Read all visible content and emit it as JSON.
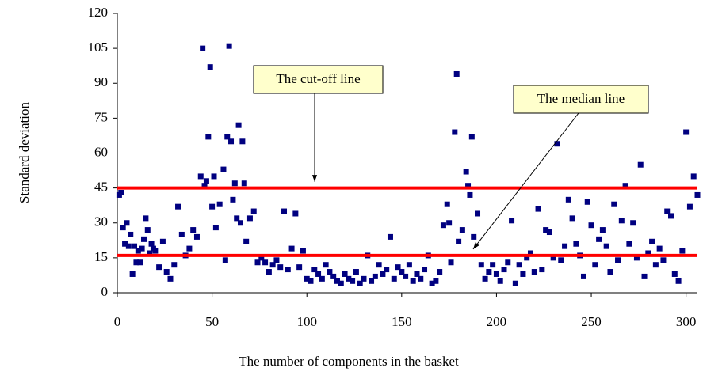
{
  "chart_data": {
    "type": "scatter",
    "x_label": "The number of components in the basket",
    "y_label": "Standard deviation",
    "xlim": [
      0,
      306
    ],
    "xticks": [
      0,
      50,
      100,
      150,
      200,
      250,
      300
    ],
    "ylim": [
      0,
      120
    ],
    "yticks": [
      0,
      15,
      30,
      45,
      60,
      75,
      90,
      105,
      120
    ],
    "color": "#000080",
    "x": [
      1,
      2,
      3,
      4,
      5,
      6,
      7,
      8,
      9,
      10,
      11,
      12,
      13,
      14,
      15,
      16,
      17,
      18,
      19,
      20,
      22,
      24,
      26,
      28,
      30,
      32,
      34,
      36,
      38,
      40,
      42,
      44,
      45,
      46,
      47,
      48,
      49,
      50,
      51,
      52,
      54,
      56,
      57,
      58,
      59,
      60,
      61,
      62,
      63,
      64,
      65,
      66,
      67,
      68,
      70,
      72,
      74,
      76,
      78,
      80,
      82,
      84,
      86,
      88,
      90,
      92,
      94,
      96,
      98,
      100,
      102,
      104,
      106,
      108,
      110,
      112,
      114,
      116,
      118,
      120,
      122,
      124,
      126,
      128,
      130,
      132,
      134,
      136,
      138,
      140,
      142,
      144,
      146,
      148,
      150,
      152,
      154,
      156,
      158,
      160,
      162,
      164,
      166,
      168,
      170,
      172,
      174,
      175,
      176,
      178,
      179,
      180,
      182,
      184,
      185,
      186,
      187,
      188,
      190,
      192,
      194,
      196,
      198,
      200,
      202,
      204,
      206,
      208,
      210,
      212,
      214,
      216,
      218,
      220,
      222,
      224,
      226,
      228,
      230,
      232,
      234,
      236,
      238,
      240,
      242,
      244,
      246,
      248,
      250,
      252,
      254,
      256,
      258,
      260,
      262,
      264,
      266,
      268,
      270,
      272,
      274,
      276,
      278,
      280,
      282,
      284,
      286,
      288,
      290,
      292,
      294,
      296,
      298,
      300,
      302,
      304,
      306
    ],
    "values": [
      42,
      43,
      28,
      21,
      30,
      20,
      25,
      8,
      20,
      13,
      18,
      13,
      19,
      23,
      32,
      27,
      17,
      21,
      19,
      18,
      11,
      22,
      9,
      6,
      12,
      37,
      25,
      16,
      19,
      27,
      24,
      50,
      105,
      46,
      48,
      67,
      97,
      37,
      50,
      28,
      38,
      53,
      14,
      67,
      106,
      65,
      40,
      47,
      32,
      72,
      30,
      65,
      47,
      22,
      32,
      35,
      13,
      15,
      13,
      9,
      12,
      14,
      11,
      35,
      10,
      19,
      34,
      11,
      18,
      6,
      5,
      10,
      8,
      6,
      12,
      9,
      7,
      5,
      4,
      8,
      6,
      5,
      9,
      4,
      6,
      16,
      5,
      7,
      12,
      8,
      10,
      24,
      6,
      11,
      9,
      7,
      12,
      5,
      8,
      6,
      10,
      16,
      4,
      5,
      9,
      29,
      38,
      30,
      13,
      69,
      94,
      22,
      27,
      52,
      46,
      42,
      67,
      24,
      34,
      12,
      6,
      9,
      12,
      8,
      5,
      10,
      13,
      31,
      4,
      12,
      8,
      15,
      17,
      9,
      36,
      10,
      27,
      26,
      15,
      64,
      14,
      20,
      40,
      32,
      21,
      16,
      7,
      39,
      29,
      12,
      23,
      27,
      20,
      9,
      38,
      14,
      31,
      46,
      21,
      30,
      15,
      55,
      7,
      17,
      22,
      12,
      19,
      14,
      35,
      33,
      8,
      5,
      18,
      69,
      37,
      50,
      42
    ],
    "reference_lines": [
      {
        "value": 45,
        "color": "#ff0000"
      },
      {
        "value": 16,
        "color": "#ff0000"
      }
    ],
    "annotations": [
      {
        "text": "The cut-off line",
        "line": 0
      },
      {
        "text": "The median line",
        "line": 1
      }
    ]
  }
}
